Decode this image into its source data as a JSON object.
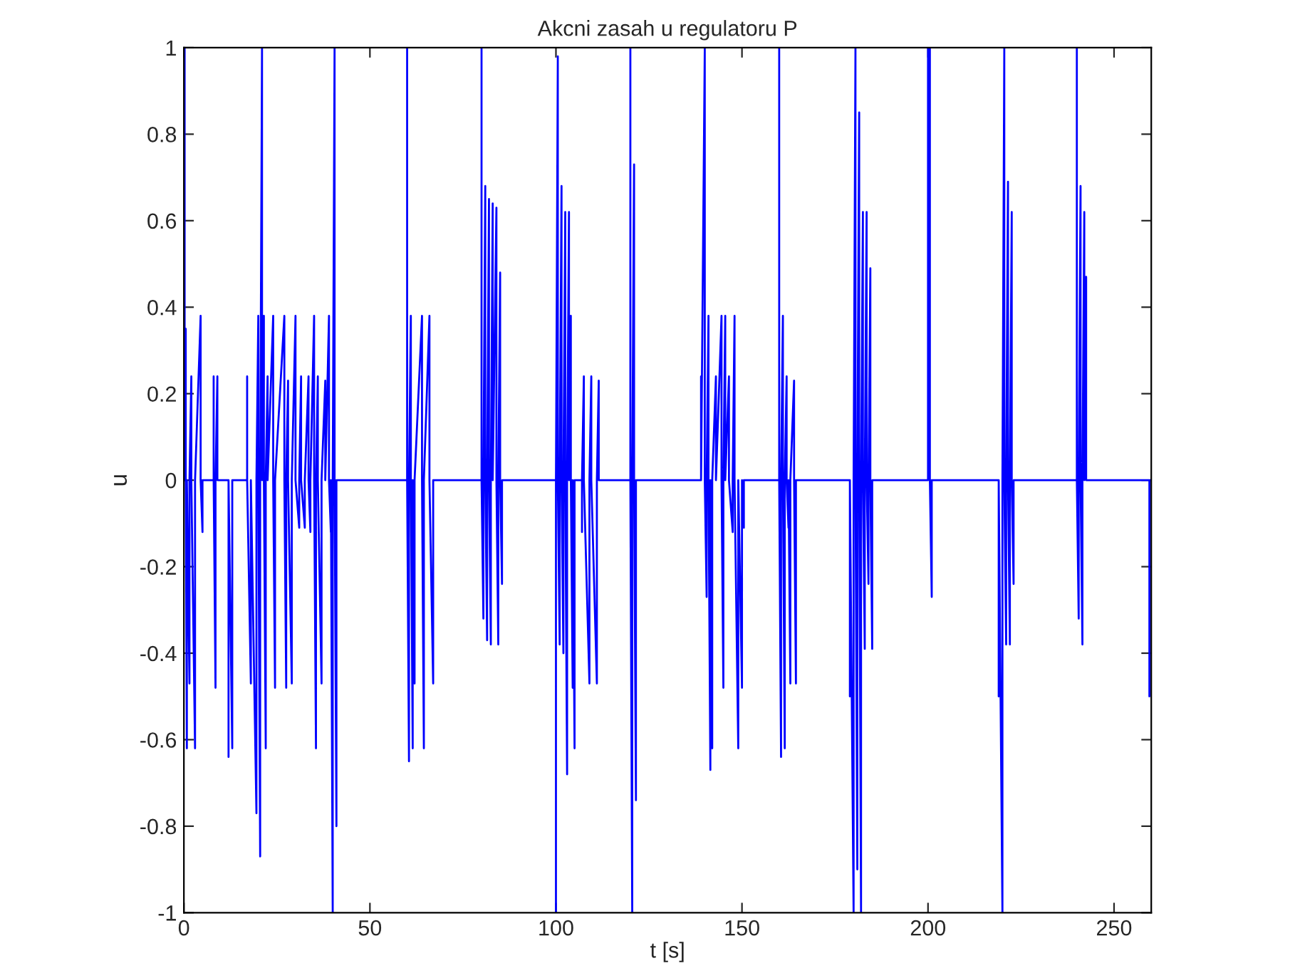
{
  "chart_data": {
    "type": "line",
    "title": "Akcni zasah u regulatoru P",
    "xlabel": "t [s]",
    "ylabel": "u",
    "xlim": [
      0,
      260
    ],
    "xticks": [
      0,
      50,
      100,
      150,
      200,
      250
    ],
    "ylim": [
      -1,
      1
    ],
    "yticks": [
      -1,
      -0.8,
      -0.6,
      -0.4,
      -0.2,
      0,
      0.2,
      0.4,
      0.6,
      0.8,
      1
    ],
    "grid": false,
    "line_style": "solid",
    "marker": "none",
    "series": [
      {
        "color": "#0000ff",
        "x": [
          0,
          0.2,
          0.2,
          0.5,
          0.5,
          0.8,
          0.8,
          1.5,
          1.5,
          2,
          2,
          3,
          3,
          4.5,
          4.5,
          5,
          5,
          8,
          8,
          8,
          8.5,
          8.5,
          9,
          9,
          12,
          12,
          12,
          13,
          13,
          17,
          17,
          17,
          18,
          18,
          19.5,
          19.5,
          20,
          20,
          20.5,
          20.5,
          21,
          21,
          21.5,
          21.5,
          22,
          22,
          22.5,
          22.5,
          24,
          24,
          24.5,
          24.5,
          27,
          27,
          27.5,
          27.5,
          28,
          28,
          29,
          29,
          30,
          30,
          31,
          31,
          31.5,
          31.5,
          32.5,
          32.5,
          33.5,
          33.5,
          34,
          34,
          35,
          35,
          35.5,
          35.5,
          36,
          36,
          37,
          37,
          38,
          38,
          39,
          39,
          39.5,
          39.5,
          40,
          40,
          40.5,
          40.5,
          41,
          41,
          60,
          60,
          60,
          60.5,
          60.5,
          61,
          61,
          61.5,
          61.5,
          62,
          62,
          64,
          64,
          64.5,
          64.5,
          66,
          66,
          67,
          67,
          80,
          80,
          80,
          80.5,
          80.5,
          81,
          81,
          81.5,
          81.5,
          82,
          82,
          82.5,
          82.5,
          83,
          83,
          84,
          84,
          84.5,
          84.5,
          85,
          85,
          85.5,
          85.5,
          100,
          100,
          100,
          100.5,
          100.5,
          101,
          101,
          101.5,
          101.5,
          102,
          102,
          102.5,
          102.5,
          103,
          103,
          103.5,
          103.5,
          104,
          104,
          104.5,
          104.5,
          105,
          105,
          107,
          107,
          107,
          107.5,
          107.5,
          109,
          109,
          109.5,
          109.5,
          111,
          111,
          111.5,
          111.5,
          120,
          120,
          120,
          120.5,
          120.5,
          121,
          121,
          121.5,
          121.5,
          139,
          139,
          139,
          140,
          140,
          140.5,
          140.5,
          141,
          141,
          141.5,
          141.5,
          142,
          142,
          143,
          143,
          144.5,
          144.5,
          145,
          145,
          145.5,
          145.5,
          146.5,
          146.5,
          147.5,
          147.5,
          148,
          148,
          149,
          149,
          150,
          150,
          150.5,
          150.5,
          160,
          160,
          160,
          160.5,
          160.5,
          161,
          161,
          161.5,
          161.5,
          162,
          162,
          162.5,
          162.5,
          163,
          163,
          164,
          164,
          164.5,
          164.5,
          179,
          179,
          179,
          180,
          180,
          180.5,
          180.5,
          181,
          181,
          181.5,
          181.5,
          182,
          182,
          182.5,
          182.5,
          183,
          183,
          183.5,
          183.5,
          184,
          184,
          184.5,
          184.5,
          185,
          185,
          200,
          200,
          200,
          200.5,
          200.5,
          201,
          201,
          219,
          219,
          219,
          220,
          220,
          220.5,
          220.5,
          221,
          221,
          221.5,
          221.5,
          222,
          222,
          222.5,
          222.5,
          223,
          223,
          240,
          240,
          240,
          240.5,
          240.5,
          241,
          241,
          241.5,
          241.5,
          242,
          242,
          242.5,
          242.5,
          259.5,
          259.5,
          259.5,
          260
        ],
        "values": [
          0,
          1,
          0,
          0.35,
          0,
          -0.62,
          0,
          -0.47,
          0,
          0.24,
          0,
          -0.62,
          0,
          0.38,
          0,
          -0.12,
          0,
          0,
          0.24,
          0,
          -0.48,
          0,
          0.24,
          0,
          0,
          -0.64,
          0,
          -0.62,
          0,
          0,
          0.24,
          0,
          -0.47,
          0,
          -0.77,
          0,
          0.38,
          0,
          -0.87,
          0,
          1,
          0,
          0.38,
          0,
          -0.62,
          0,
          0.24,
          0,
          0.38,
          0,
          -0.48,
          0,
          0.38,
          0,
          -0.48,
          0,
          0.23,
          0,
          -0.47,
          0,
          0.38,
          0,
          -0.11,
          0,
          0.24,
          0,
          -0.11,
          0,
          0.24,
          0,
          -0.12,
          0,
          0.38,
          0,
          -0.62,
          0,
          0.24,
          0,
          -0.47,
          0,
          0.23,
          0,
          0.38,
          0,
          -0.12,
          0,
          -1,
          0,
          1,
          0,
          -0.8,
          0,
          0,
          1,
          0,
          -0.65,
          0,
          0.38,
          0,
          -0.62,
          0,
          -0.47,
          0,
          0.38,
          0,
          -0.62,
          0,
          0.38,
          0,
          -0.47,
          0,
          0,
          1,
          0,
          -0.32,
          0,
          0.68,
          0,
          -0.37,
          0,
          0.65,
          0,
          -0.38,
          0,
          0.64,
          0,
          0.63,
          0,
          -0.38,
          0,
          0.48,
          0,
          -0.24,
          0,
          0,
          -1,
          0,
          0.98,
          0,
          -0.38,
          0,
          0.68,
          0,
          -0.4,
          0,
          0.62,
          0,
          -0.68,
          0,
          0.62,
          0,
          0.38,
          0,
          -0.48,
          0,
          -0.62,
          0,
          0,
          -0.12,
          0,
          0.24,
          0,
          -0.47,
          0,
          0.24,
          0,
          -0.47,
          0,
          0.23,
          0,
          0,
          1,
          0,
          -1,
          0,
          0.73,
          0,
          -0.74,
          0,
          0,
          0.24,
          0,
          1,
          0,
          -0.27,
          0,
          0.38,
          0,
          -0.67,
          0,
          -0.62,
          0,
          0.24,
          0,
          0.38,
          0,
          -0.48,
          0,
          0.38,
          0,
          0.24,
          0,
          -0.12,
          0,
          0.38,
          0,
          -0.62,
          0,
          -0.48,
          0,
          -0.11,
          0,
          0,
          1,
          0,
          -0.64,
          0,
          0.38,
          0,
          -0.62,
          0,
          0.24,
          0,
          -0.11,
          0,
          -0.47,
          0,
          0.23,
          0,
          -0.47,
          0,
          0,
          -0.5,
          0,
          -1,
          0,
          1,
          0,
          -0.9,
          0,
          0.85,
          0,
          -1,
          0,
          0.62,
          0,
          -0.39,
          0,
          0.62,
          0,
          -0.24,
          0,
          0.49,
          0,
          -0.39,
          0,
          0,
          1,
          0,
          1,
          0,
          -0.27,
          0,
          0,
          -0.5,
          0,
          -1,
          0,
          1,
          0,
          -0.38,
          0,
          0.69,
          0,
          -0.38,
          0,
          0.62,
          0,
          -0.24,
          0,
          0,
          1,
          0,
          -0.32,
          0,
          0.68,
          0,
          -0.38,
          0,
          0.62,
          0,
          0.47,
          0,
          0,
          -0.5,
          0,
          0
        ]
      }
    ]
  }
}
